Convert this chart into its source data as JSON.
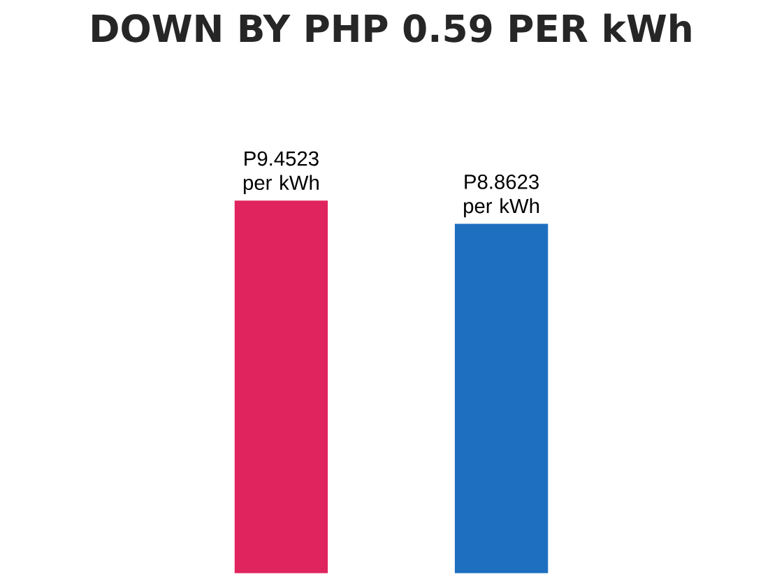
{
  "chart_data": {
    "type": "bar",
    "title": "DOWN BY PHP 0.59 PER kWh",
    "categories": [
      null,
      null
    ],
    "values": [
      9.4523,
      8.8623
    ],
    "colors": [
      "#e0245e",
      "#1f6fc0"
    ],
    "value_labels": [
      "P9.4523 per kWh",
      "P8.8623 per kWh"
    ]
  }
}
